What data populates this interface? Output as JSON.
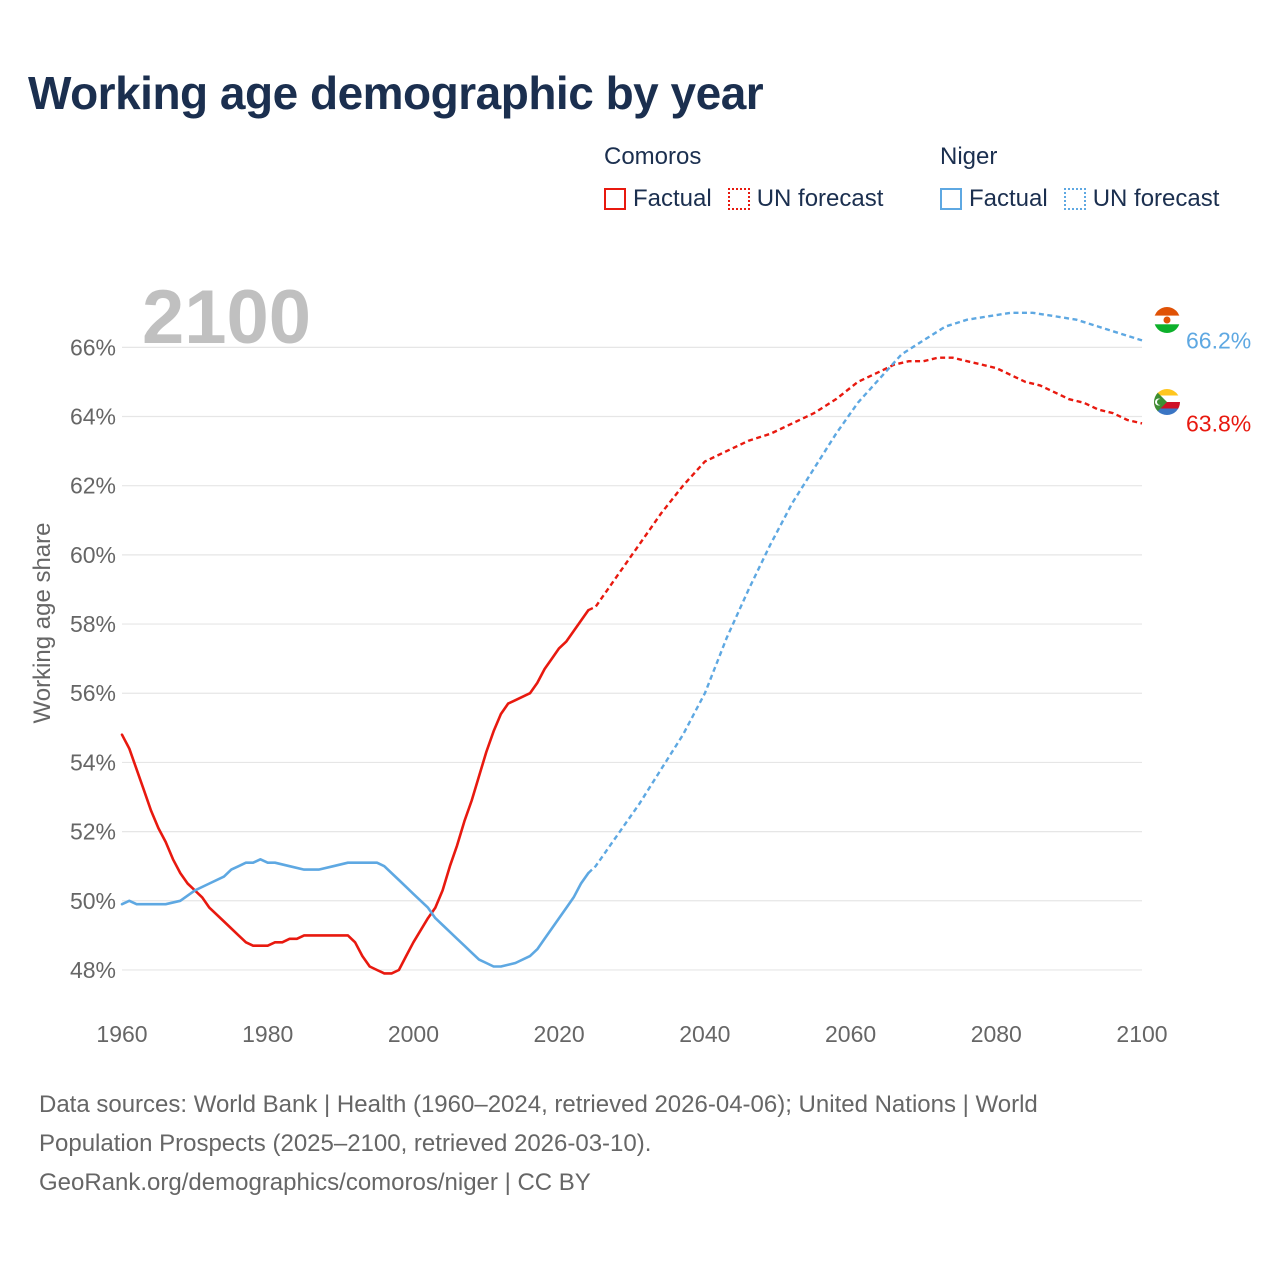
{
  "title": "Working age demographic by year",
  "legend": {
    "groups": [
      {
        "name": "Comoros",
        "color": "#e8190f",
        "factual": "Factual",
        "forecast": "UN forecast"
      },
      {
        "name": "Niger",
        "color": "#5ea8e2",
        "factual": "Factual",
        "forecast": "UN forecast"
      }
    ]
  },
  "footer": {
    "line1": "Data sources: World Bank | Health (1960–2024, retrieved 2026-04-06); United Nations | World",
    "line2": "Population Prospects (2025–2100, retrieved 2026-03-10).",
    "line3": "GeoRank.org/demographics/comoros/niger | CC BY"
  },
  "chart_data": {
    "type": "line",
    "title": "Working age demographic by year",
    "year_label": "2100",
    "xlabel": "",
    "ylabel": "Working age share",
    "xlim": [
      1960,
      2100
    ],
    "ylim": [
      46.9,
      67.6
    ],
    "x_ticks": [
      1960,
      1980,
      2000,
      2020,
      2040,
      2060,
      2080,
      2100
    ],
    "x_tick_labels": [
      "1960",
      "1980",
      "2000",
      "2020",
      "2040",
      "2060",
      "2080",
      "2100"
    ],
    "y_ticks": [
      48,
      50,
      52,
      54,
      56,
      58,
      60,
      62,
      64,
      66
    ],
    "y_tick_labels": [
      "48%",
      "50%",
      "52%",
      "54%",
      "56%",
      "58%",
      "60%",
      "62%",
      "64%",
      "66%"
    ],
    "grid": true,
    "legend_position": "top-right",
    "factual_end_year": 2024,
    "series": [
      {
        "name": "Comoros",
        "color": "#e8190f",
        "end_label": "63.8%",
        "x": [
          1960,
          1961,
          1962,
          1963,
          1964,
          1965,
          1966,
          1967,
          1968,
          1969,
          1970,
          1971,
          1972,
          1974,
          1976,
          1977,
          1978,
          1980,
          1981,
          1982,
          1983,
          1984,
          1985,
          1986,
          1988,
          1990,
          1991,
          1992,
          1993,
          1994,
          1995,
          1996,
          1997,
          1998,
          1999,
          2000,
          2002,
          2003,
          2004,
          2005,
          2006,
          2007,
          2008,
          2009,
          2010,
          2011,
          2012,
          2013,
          2014,
          2015,
          2016,
          2017,
          2018,
          2019,
          2020,
          2021,
          2022,
          2023,
          2024,
          2025,
          2028,
          2031,
          2034,
          2037,
          2040,
          2043,
          2046,
          2049,
          2052,
          2055,
          2058,
          2061,
          2064,
          2066,
          2068,
          2070,
          2072,
          2074,
          2076,
          2078,
          2080,
          2082,
          2084,
          2086,
          2088,
          2090,
          2092,
          2094,
          2096,
          2098,
          2100
        ],
        "values": [
          54.8,
          54.4,
          53.8,
          53.2,
          52.6,
          52.1,
          51.7,
          51.2,
          50.8,
          50.5,
          50.3,
          50.1,
          49.8,
          49.4,
          49.0,
          48.8,
          48.7,
          48.7,
          48.8,
          48.8,
          48.9,
          48.9,
          49.0,
          49.0,
          49.0,
          49.0,
          49.0,
          48.8,
          48.4,
          48.1,
          48.0,
          47.9,
          47.9,
          48.0,
          48.4,
          48.8,
          49.5,
          49.8,
          50.3,
          51.0,
          51.6,
          52.3,
          52.9,
          53.6,
          54.3,
          54.9,
          55.4,
          55.7,
          55.8,
          55.9,
          56.0,
          56.3,
          56.7,
          57.0,
          57.3,
          57.5,
          57.8,
          58.1,
          58.4,
          58.5,
          59.4,
          60.3,
          61.2,
          62.0,
          62.7,
          63.0,
          63.3,
          63.5,
          63.8,
          64.1,
          64.5,
          65.0,
          65.3,
          65.5,
          65.6,
          65.6,
          65.7,
          65.7,
          65.6,
          65.5,
          65.4,
          65.2,
          65.0,
          64.9,
          64.7,
          64.5,
          64.4,
          64.2,
          64.1,
          63.9,
          63.8
        ]
      },
      {
        "name": "Niger",
        "color": "#5ea8e2",
        "end_label": "66.2%",
        "x": [
          1960,
          1961,
          1962,
          1964,
          1966,
          1968,
          1970,
          1972,
          1974,
          1975,
          1976,
          1977,
          1978,
          1979,
          1980,
          1981,
          1983,
          1985,
          1987,
          1989,
          1991,
          1993,
          1995,
          1996,
          1998,
          2000,
          2002,
          2003,
          2004,
          2005,
          2006,
          2007,
          2008,
          2009,
          2010,
          2011,
          2012,
          2014,
          2016,
          2017,
          2018,
          2019,
          2020,
          2021,
          2022,
          2023,
          2024,
          2025,
          2026,
          2028,
          2031,
          2034,
          2037,
          2040,
          2043,
          2046,
          2049,
          2052,
          2055,
          2058,
          2061,
          2064,
          2067,
          2070,
          2073,
          2076,
          2079,
          2082,
          2085,
          2088,
          2091,
          2094,
          2097,
          2100
        ],
        "values": [
          49.9,
          50.0,
          49.9,
          49.9,
          49.9,
          50.0,
          50.3,
          50.5,
          50.7,
          50.9,
          51.0,
          51.1,
          51.1,
          51.2,
          51.1,
          51.1,
          51.0,
          50.9,
          50.9,
          51.0,
          51.1,
          51.1,
          51.1,
          51.0,
          50.6,
          50.2,
          49.8,
          49.5,
          49.3,
          49.1,
          48.9,
          48.7,
          48.5,
          48.3,
          48.2,
          48.1,
          48.1,
          48.2,
          48.4,
          48.6,
          48.9,
          49.2,
          49.5,
          49.8,
          50.1,
          50.5,
          50.8,
          51.0,
          51.3,
          51.9,
          52.8,
          53.8,
          54.8,
          56.0,
          57.6,
          59.0,
          60.3,
          61.5,
          62.5,
          63.5,
          64.4,
          65.1,
          65.8,
          66.2,
          66.6,
          66.8,
          66.9,
          67.0,
          67.0,
          66.9,
          66.8,
          66.6,
          66.4,
          66.2
        ]
      }
    ]
  }
}
